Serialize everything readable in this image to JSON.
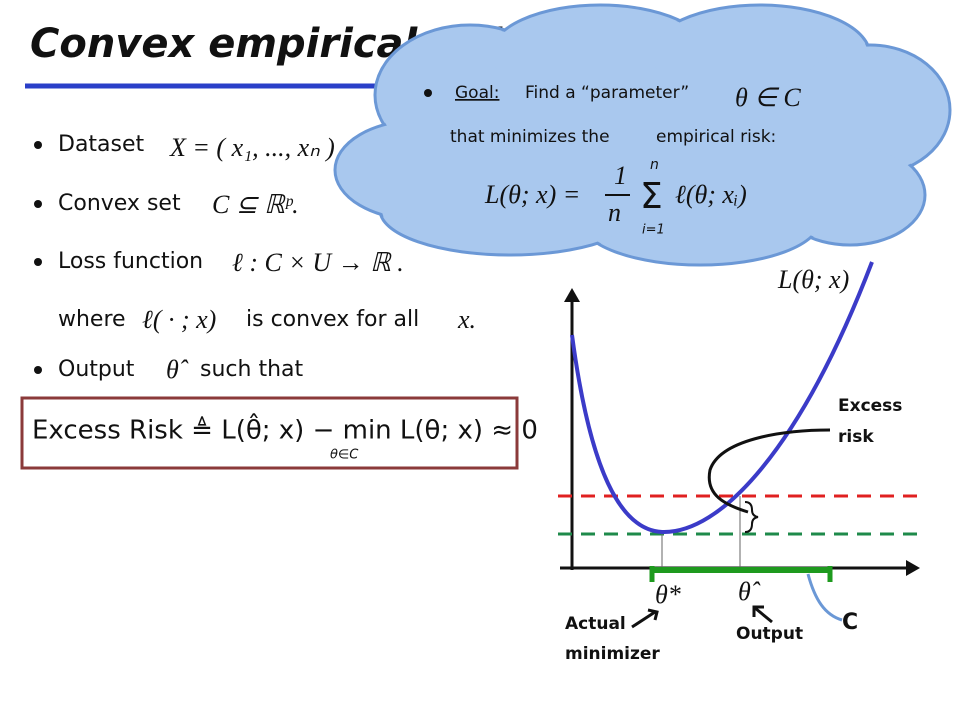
{
  "slide": {
    "title": "Convex empirical risk minimization",
    "bullets": {
      "dataset": {
        "label": "Dataset",
        "math": "X = ( x₁, ..., xₙ )"
      },
      "convex_set": {
        "label": "Convex set",
        "math": "C ⊆ ℝᵖ."
      },
      "loss": {
        "label": "Loss function",
        "math": "ℓ : C × U → ℝ ."
      },
      "where": {
        "label": "where",
        "math": "ℓ( · ; x)",
        "suffix": "is convex for all",
        "var": "x."
      },
      "output": {
        "label": "Output",
        "math": "θ̂",
        "suffix": "such that"
      }
    },
    "excess_box": {
      "text": "Excess Risk ≜ L(θ̂; x) − min L(θ; x) ≈ 0",
      "subscript": "θ∈C"
    },
    "cloud": {
      "goal": "Goal:",
      "goal_text": "Find a “parameter”",
      "goal_math": "θ ∈ C",
      "line2": "that minimizes the",
      "line2_highlight": "empirical risk:",
      "formula_lhs": "L(θ; x) =",
      "formula_num": "1",
      "formula_den": "n",
      "formula_sum_top": "n",
      "formula_sum": "Σ",
      "formula_sum_bottom": "i=1",
      "formula_rhs": "ℓ(θ; xᵢ)"
    },
    "graph": {
      "curve_label": "L(θ; x)",
      "excess_label_1": "Excess",
      "excess_label_2": "risk",
      "theta_star": "θ*",
      "theta_hat": "θ̂",
      "actual_1": "Actual",
      "actual_2": "minimizer",
      "output": "Output",
      "set": "C"
    }
  }
}
